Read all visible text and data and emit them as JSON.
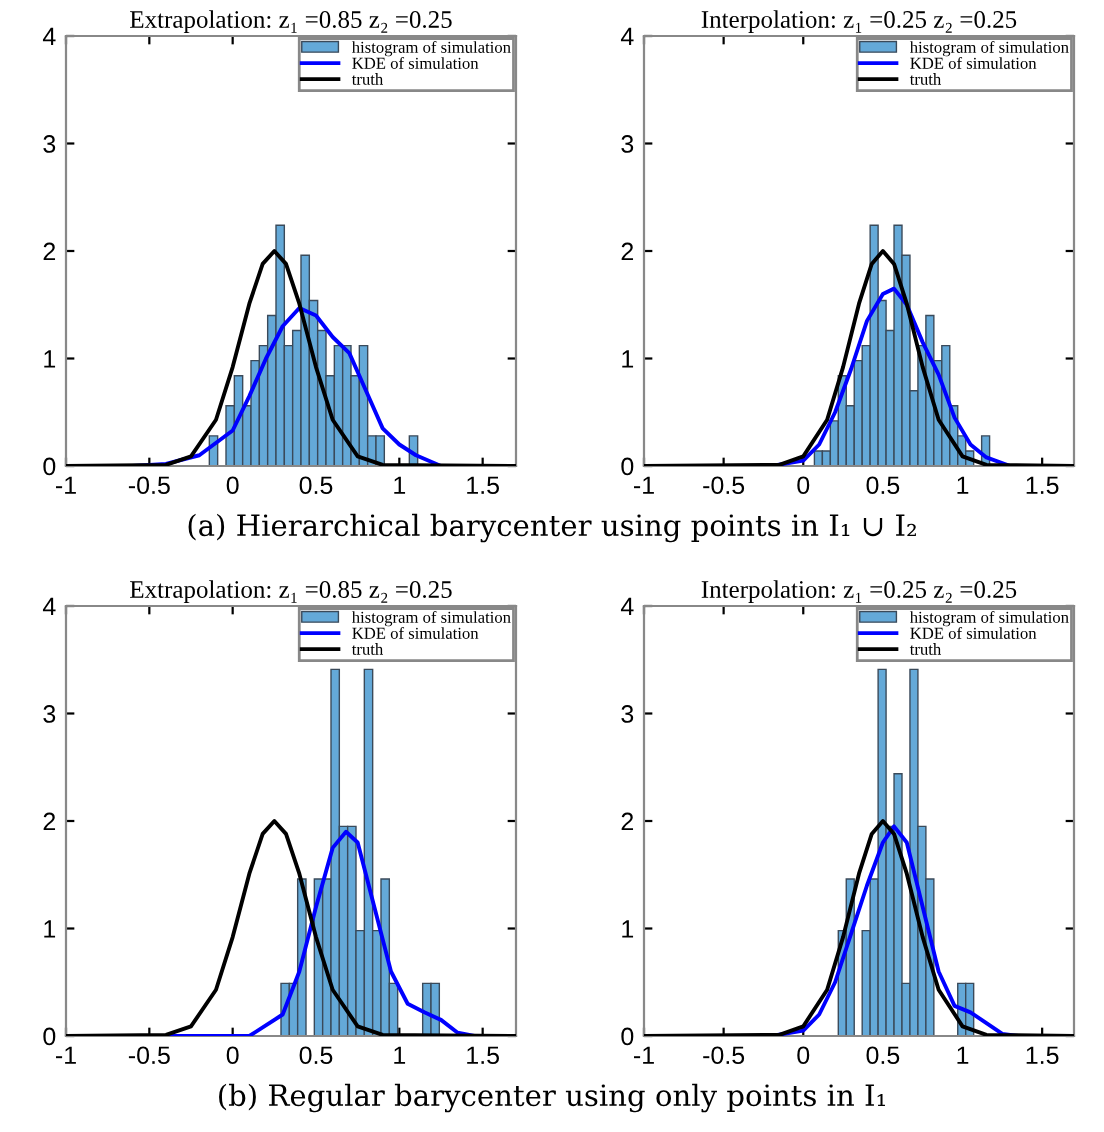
{
  "chart_data": [
    {
      "type": "histogram",
      "title": "Extrapolation: z₁ =0.85 z₂ =0.25",
      "bins": [
        -0.14,
        -0.09,
        -0.04,
        0.01,
        0.06,
        0.11,
        0.16,
        0.21,
        0.26,
        0.31,
        0.36,
        0.41,
        0.46,
        0.51,
        0.56,
        0.61,
        0.66,
        0.71,
        0.76,
        0.81,
        0.86,
        0.91,
        0.96,
        1.01,
        1.06,
        1.11
      ],
      "series": [
        {
          "name": "histogram of simulation",
          "color": "#64a9d8",
          "values": [
            0.28,
            0,
            0.56,
            0.84,
            0.56,
            0.98,
            1.12,
            1.4,
            2.24,
            1.12,
            1.26,
            1.96,
            1.54,
            1.26,
            0.84,
            1.12,
            1.12,
            0.84,
            1.12,
            0.28,
            0.28,
            0,
            0,
            0,
            0.28
          ]
        },
        {
          "name": "KDE of simulation",
          "type": "line",
          "color": "#0000ff",
          "x": [
            -1,
            -0.6,
            -0.4,
            -0.2,
            0,
            0.1,
            0.2,
            0.3,
            0.4,
            0.5,
            0.6,
            0.7,
            0.8,
            0.9,
            1.0,
            1.1,
            1.25,
            1.7
          ],
          "values": [
            0,
            0,
            0.02,
            0.1,
            0.33,
            0.65,
            1.0,
            1.3,
            1.47,
            1.4,
            1.2,
            1.05,
            0.7,
            0.35,
            0.2,
            0.1,
            0,
            0
          ]
        },
        {
          "name": "truth",
          "type": "line",
          "color": "#000000",
          "x": [
            -1,
            -0.4,
            -0.25,
            -0.1,
            0,
            0.1,
            0.18,
            0.25,
            0.32,
            0.4,
            0.5,
            0.6,
            0.75,
            0.9,
            1.7
          ],
          "values": [
            0,
            0.01,
            0.09,
            0.43,
            0.92,
            1.51,
            1.88,
            2.0,
            1.88,
            1.51,
            0.92,
            0.43,
            0.09,
            0.01,
            0
          ]
        }
      ],
      "xlim": [
        -1,
        1.7
      ],
      "ylim": [
        0,
        4
      ],
      "xticks": [
        -1,
        -0.5,
        0,
        0.5,
        1,
        1.5
      ],
      "yticks": [
        0,
        1,
        2,
        3,
        4
      ],
      "legend": "top right",
      "annotations": [
        "(a) Hierarchical barycenter using points in I₁ ∪ I₂"
      ]
    },
    {
      "type": "histogram",
      "title": "Interpolation: z₁ =0.25 z₂ =0.25",
      "bins": [
        0.07,
        0.12,
        0.17,
        0.22,
        0.27,
        0.32,
        0.37,
        0.42,
        0.47,
        0.52,
        0.57,
        0.62,
        0.67,
        0.72,
        0.77,
        0.82,
        0.87,
        0.92,
        0.97,
        1.02,
        1.07,
        1.12,
        1.17
      ],
      "series": [
        {
          "name": "histogram of simulation",
          "color": "#64a9d8",
          "values": [
            0.14,
            0.14,
            0.42,
            0.84,
            0.56,
            0.98,
            1.12,
            2.24,
            1.54,
            1.26,
            2.24,
            1.96,
            0.7,
            1.12,
            1.4,
            0.98,
            1.12,
            0.56,
            0.28,
            0.14,
            0,
            0.28
          ]
        },
        {
          "name": "KDE of simulation",
          "type": "line",
          "color": "#0000ff",
          "x": [
            -1,
            -0.2,
            0,
            0.1,
            0.2,
            0.3,
            0.4,
            0.5,
            0.57,
            0.65,
            0.75,
            0.85,
            0.95,
            1.05,
            1.15,
            1.3,
            1.7
          ],
          "values": [
            0,
            0,
            0.05,
            0.2,
            0.5,
            0.9,
            1.35,
            1.6,
            1.65,
            1.5,
            1.15,
            0.85,
            0.45,
            0.2,
            0.08,
            0,
            0
          ]
        },
        {
          "name": "truth",
          "type": "line",
          "color": "#000000",
          "x": [
            -1,
            -0.15,
            0,
            0.15,
            0.25,
            0.35,
            0.43,
            0.5,
            0.57,
            0.65,
            0.75,
            0.85,
            1.0,
            1.15,
            1.7
          ],
          "values": [
            0,
            0.01,
            0.09,
            0.43,
            0.92,
            1.51,
            1.88,
            2.0,
            1.88,
            1.51,
            0.92,
            0.43,
            0.09,
            0.01,
            0
          ]
        }
      ],
      "xlim": [
        -1,
        1.7
      ],
      "ylim": [
        0,
        4
      ],
      "xticks": [
        -1,
        -0.5,
        0,
        0.5,
        1,
        1.5
      ],
      "yticks": [
        0,
        1,
        2,
        3,
        4
      ],
      "legend": "top right"
    },
    {
      "type": "histogram",
      "title": "Extrapolation: z₁ =0.85 z₂ =0.25",
      "bins": [
        0.29,
        0.34,
        0.39,
        0.44,
        0.49,
        0.54,
        0.59,
        0.64,
        0.69,
        0.74,
        0.79,
        0.84,
        0.89,
        0.94,
        0.99,
        1.04,
        1.09,
        1.14,
        1.19,
        1.24
      ],
      "series": [
        {
          "name": "histogram of simulation",
          "color": "#64a9d8",
          "values": [
            0.49,
            0.49,
            1.46,
            0,
            1.46,
            1.46,
            3.41,
            1.95,
            1.95,
            0.98,
            3.41,
            0.98,
            1.46,
            0.49,
            0,
            0,
            0,
            0.49,
            0.49
          ]
        },
        {
          "name": "KDE of simulation",
          "type": "line",
          "color": "#0000ff",
          "x": [
            -1,
            0.1,
            0.3,
            0.4,
            0.5,
            0.6,
            0.68,
            0.75,
            0.85,
            0.95,
            1.05,
            1.15,
            1.25,
            1.35,
            1.45,
            1.7
          ],
          "values": [
            0,
            0,
            0.2,
            0.6,
            1.2,
            1.75,
            1.9,
            1.8,
            1.2,
            0.6,
            0.3,
            0.22,
            0.15,
            0.03,
            0,
            0
          ]
        },
        {
          "name": "truth",
          "type": "line",
          "color": "#000000",
          "x": [
            -1,
            -0.4,
            -0.25,
            -0.1,
            0,
            0.1,
            0.18,
            0.25,
            0.32,
            0.4,
            0.5,
            0.6,
            0.75,
            0.9,
            1.7
          ],
          "values": [
            0,
            0.01,
            0.09,
            0.43,
            0.92,
            1.51,
            1.88,
            2.0,
            1.88,
            1.51,
            0.92,
            0.43,
            0.09,
            0.01,
            0
          ]
        }
      ],
      "xlim": [
        -1,
        1.7
      ],
      "ylim": [
        0,
        4
      ],
      "xticks": [
        -1,
        -0.5,
        0,
        0.5,
        1,
        1.5
      ],
      "yticks": [
        0,
        1,
        2,
        3,
        4
      ],
      "legend": "top right",
      "annotations": [
        "(b) Regular barycenter using only points in I₁"
      ]
    },
    {
      "type": "histogram",
      "title": "Interpolation: z₁ =0.25 z₂ =0.25",
      "bins": [
        0.22,
        0.27,
        0.32,
        0.37,
        0.42,
        0.47,
        0.52,
        0.57,
        0.62,
        0.67,
        0.72,
        0.77,
        0.82,
        0.87,
        0.92,
        0.97,
        1.02,
        1.07
      ],
      "series": [
        {
          "name": "histogram of simulation",
          "color": "#64a9d8",
          "values": [
            0.98,
            1.46,
            0,
            0.98,
            1.46,
            3.41,
            1.95,
            2.44,
            0.49,
            3.41,
            1.95,
            1.46,
            0,
            0,
            0,
            0.49,
            0.49
          ]
        },
        {
          "name": "KDE of simulation",
          "type": "line",
          "color": "#0000ff",
          "x": [
            -1,
            -0.2,
            0,
            0.1,
            0.2,
            0.3,
            0.4,
            0.5,
            0.57,
            0.65,
            0.75,
            0.85,
            0.95,
            1.05,
            1.12,
            1.25,
            1.35,
            1.7
          ],
          "values": [
            0,
            0,
            0.05,
            0.2,
            0.5,
            0.95,
            1.4,
            1.8,
            1.95,
            1.8,
            1.2,
            0.6,
            0.28,
            0.22,
            0.15,
            0.02,
            0,
            0
          ]
        },
        {
          "name": "truth",
          "type": "line",
          "color": "#000000",
          "x": [
            -1,
            -0.15,
            0,
            0.15,
            0.25,
            0.35,
            0.43,
            0.5,
            0.57,
            0.65,
            0.75,
            0.85,
            1.0,
            1.15,
            1.7
          ],
          "values": [
            0,
            0.01,
            0.09,
            0.43,
            0.92,
            1.51,
            1.88,
            2.0,
            1.88,
            1.51,
            0.92,
            0.43,
            0.09,
            0.01,
            0
          ]
        }
      ],
      "xlim": [
        -1,
        1.7
      ],
      "ylim": [
        0,
        4
      ],
      "xticks": [
        -1,
        -0.5,
        0,
        0.5,
        1,
        1.5
      ],
      "yticks": [
        0,
        1,
        2,
        3,
        4
      ],
      "legend": "top right"
    }
  ]
}
